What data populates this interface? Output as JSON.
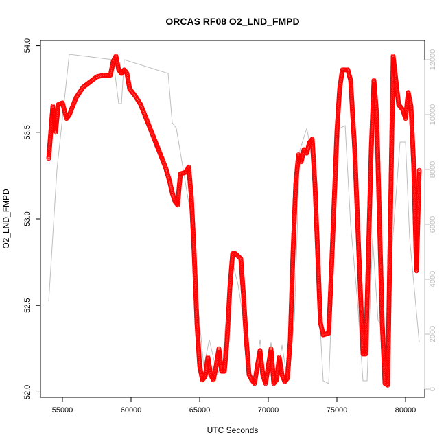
{
  "chart_data": {
    "type": "scatter",
    "title": "ORCAS RF08 O2_LND_FMPD",
    "xlabel": "UTC Seconds",
    "ylabel": "O2_LND_FMPD",
    "xlim": [
      53400,
      81400
    ],
    "ylim": [
      51.97,
      54.03
    ],
    "y2lim": [
      -300,
      12700
    ],
    "x_ticks": [
      55000,
      60000,
      65000,
      70000,
      75000,
      80000
    ],
    "y_ticks": [
      "52.0",
      "52.5",
      "53.0",
      "53.5",
      "54.0"
    ],
    "y2_ticks": [
      "0",
      "2000",
      "4000",
      "6000",
      "8000",
      "10000",
      "12000"
    ],
    "colors": {
      "primary": "#ff0000",
      "secondary": "#bebebe"
    },
    "series": [
      {
        "marker": "open-circle",
        "color": "#ff0000",
        "points": [
          [
            54000,
            53.35
          ],
          [
            54150,
            53.5
          ],
          [
            54300,
            53.65
          ],
          [
            54500,
            53.5
          ],
          [
            54700,
            53.66
          ],
          [
            55000,
            53.67
          ],
          [
            55300,
            53.58
          ],
          [
            55500,
            53.6
          ],
          [
            56000,
            53.7
          ],
          [
            56500,
            53.76
          ],
          [
            57000,
            53.79
          ],
          [
            57500,
            53.82
          ],
          [
            58000,
            53.83
          ],
          [
            58500,
            53.83
          ],
          [
            58700,
            53.91
          ],
          [
            58900,
            53.94
          ],
          [
            59100,
            53.86
          ],
          [
            59300,
            53.84
          ],
          [
            59500,
            53.86
          ],
          [
            59700,
            53.84
          ],
          [
            59900,
            53.75
          ],
          [
            60300,
            53.71
          ],
          [
            60700,
            53.66
          ],
          [
            61000,
            53.6
          ],
          [
            61500,
            53.5
          ],
          [
            62000,
            53.4
          ],
          [
            62500,
            53.3
          ],
          [
            62800,
            53.22
          ],
          [
            63000,
            53.15
          ],
          [
            63200,
            53.1
          ],
          [
            63400,
            53.08
          ],
          [
            63500,
            53.18
          ],
          [
            63600,
            53.26
          ],
          [
            64000,
            53.27
          ],
          [
            64200,
            53.3
          ],
          [
            64400,
            53.12
          ],
          [
            64600,
            52.8
          ],
          [
            64800,
            52.4
          ],
          [
            65000,
            52.15
          ],
          [
            65200,
            52.07
          ],
          [
            65400,
            52.09
          ],
          [
            65600,
            52.2
          ],
          [
            65800,
            52.1
          ],
          [
            66000,
            52.07
          ],
          [
            66200,
            52.15
          ],
          [
            66400,
            52.25
          ],
          [
            66600,
            52.12
          ],
          [
            66800,
            52.12
          ],
          [
            67000,
            52.3
          ],
          [
            67200,
            52.6
          ],
          [
            67400,
            52.8
          ],
          [
            67600,
            52.8
          ],
          [
            68000,
            52.77
          ],
          [
            68200,
            52.55
          ],
          [
            68400,
            52.3
          ],
          [
            68600,
            52.1
          ],
          [
            68800,
            52.07
          ],
          [
            69000,
            52.05
          ],
          [
            69200,
            52.15
          ],
          [
            69400,
            52.24
          ],
          [
            69600,
            52.1
          ],
          [
            69800,
            52.05
          ],
          [
            70000,
            52.15
          ],
          [
            70200,
            52.25
          ],
          [
            70400,
            52.05
          ],
          [
            70600,
            52.07
          ],
          [
            70800,
            52.2
          ],
          [
            71000,
            52.1
          ],
          [
            71200,
            52.06
          ],
          [
            71400,
            52.08
          ],
          [
            71600,
            52.3
          ],
          [
            71800,
            52.8
          ],
          [
            72000,
            53.2
          ],
          [
            72200,
            53.37
          ],
          [
            72400,
            53.33
          ],
          [
            72600,
            53.4
          ],
          [
            72800,
            53.38
          ],
          [
            73000,
            53.44
          ],
          [
            73200,
            53.46
          ],
          [
            73400,
            53.2
          ],
          [
            73600,
            52.8
          ],
          [
            73800,
            52.4
          ],
          [
            74000,
            52.33
          ],
          [
            74400,
            52.34
          ],
          [
            74600,
            52.7
          ],
          [
            74800,
            53.1
          ],
          [
            75000,
            53.5
          ],
          [
            75200,
            53.75
          ],
          [
            75400,
            53.86
          ],
          [
            75800,
            53.86
          ],
          [
            76000,
            53.8
          ],
          [
            76300,
            53.4
          ],
          [
            76600,
            52.8
          ],
          [
            76900,
            52.22
          ],
          [
            77100,
            52.22
          ],
          [
            77300,
            52.8
          ],
          [
            77500,
            53.4
          ],
          [
            77700,
            53.8
          ],
          [
            77900,
            53.6
          ],
          [
            78100,
            53.0
          ],
          [
            78300,
            52.4
          ],
          [
            78500,
            52.05
          ],
          [
            78700,
            52.04
          ],
          [
            78900,
            53.0
          ],
          [
            79100,
            53.94
          ],
          [
            79300,
            53.8
          ],
          [
            79500,
            53.66
          ],
          [
            79800,
            53.63
          ],
          [
            80000,
            53.58
          ],
          [
            80200,
            53.73
          ],
          [
            80400,
            53.65
          ],
          [
            80600,
            53.3
          ],
          [
            80800,
            52.7
          ],
          [
            81000,
            53.28
          ]
        ]
      },
      {
        "axis": "right",
        "color": "#bebebe",
        "points": [
          [
            54000,
            3200
          ],
          [
            54600,
            8000
          ],
          [
            55500,
            12200
          ],
          [
            58700,
            12000
          ],
          [
            59100,
            10400
          ],
          [
            59300,
            10400
          ],
          [
            59500,
            12000
          ],
          [
            62700,
            11500
          ],
          [
            63000,
            9700
          ],
          [
            63300,
            9500
          ],
          [
            63800,
            8000
          ],
          [
            64300,
            6500
          ],
          [
            64800,
            3500
          ],
          [
            65300,
            800
          ],
          [
            65700,
            1800
          ],
          [
            66300,
            500
          ],
          [
            66700,
            1200
          ],
          [
            67000,
            3000
          ],
          [
            67200,
            4500
          ],
          [
            67500,
            4400
          ],
          [
            67800,
            3800
          ],
          [
            68200,
            2500
          ],
          [
            68600,
            600
          ],
          [
            69000,
            200
          ],
          [
            69400,
            1800
          ],
          [
            69800,
            200
          ],
          [
            70200,
            1700
          ],
          [
            70600,
            200
          ],
          [
            71000,
            1600
          ],
          [
            71400,
            300
          ],
          [
            71900,
            2500
          ],
          [
            72300,
            8700
          ],
          [
            72800,
            9500
          ],
          [
            73200,
            8500
          ],
          [
            73700,
            3000
          ],
          [
            74000,
            300
          ],
          [
            74400,
            200
          ],
          [
            74700,
            4000
          ],
          [
            75200,
            9500
          ],
          [
            75600,
            9600
          ],
          [
            76000,
            6000
          ],
          [
            76500,
            3200
          ],
          [
            76900,
            300
          ],
          [
            77200,
            300
          ],
          [
            77600,
            5500
          ],
          [
            78000,
            2500
          ],
          [
            78300,
            2300
          ],
          [
            78700,
            1500
          ],
          [
            79000,
            5000
          ],
          [
            79600,
            9000
          ],
          [
            80000,
            9000
          ],
          [
            80300,
            5500
          ],
          [
            81000,
            1700
          ]
        ]
      }
    ]
  }
}
